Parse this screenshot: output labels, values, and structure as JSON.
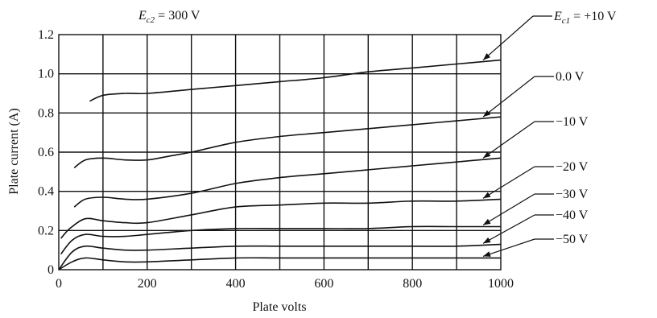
{
  "chart_data": {
    "type": "line",
    "xlabel": "Plate volts",
    "ylabel": "Plate current (A)",
    "xlim": [
      0,
      1000
    ],
    "ylim": [
      0,
      1.2
    ],
    "x_ticks": [
      "0",
      "200",
      "400",
      "600",
      "800",
      "1000"
    ],
    "y_ticks": [
      "0",
      "0.2",
      "0.4",
      "0.6",
      "0.8",
      "1.0",
      "1.2"
    ],
    "grid": true,
    "annotation": {
      "prefix": "E",
      "sub": "c2",
      "suffix": " = 300 V"
    },
    "series": [
      {
        "label_prefix": "E",
        "label_sub": "c1",
        "label": " = +10 V",
        "x": [
          70,
          100,
          150,
          200,
          300,
          400,
          500,
          600,
          700,
          800,
          900,
          1000
        ],
        "y": [
          0.86,
          0.89,
          0.9,
          0.9,
          0.92,
          0.94,
          0.96,
          0.98,
          1.01,
          1.03,
          1.05,
          1.07
        ]
      },
      {
        "label": "0.0 V",
        "x": [
          35,
          60,
          100,
          150,
          200,
          250,
          300,
          400,
          500,
          600,
          700,
          800,
          900,
          1000
        ],
        "y": [
          0.52,
          0.56,
          0.57,
          0.56,
          0.56,
          0.58,
          0.6,
          0.65,
          0.68,
          0.7,
          0.72,
          0.74,
          0.76,
          0.78
        ]
      },
      {
        "label": "−10 V",
        "x": [
          35,
          60,
          100,
          150,
          200,
          300,
          400,
          500,
          600,
          700,
          800,
          900,
          1000
        ],
        "y": [
          0.32,
          0.36,
          0.37,
          0.36,
          0.36,
          0.39,
          0.44,
          0.47,
          0.49,
          0.51,
          0.53,
          0.55,
          0.57
        ]
      },
      {
        "label": "−20 V",
        "x": [
          5,
          25,
          60,
          100,
          150,
          200,
          300,
          400,
          500,
          600,
          700,
          800,
          900,
          1000
        ],
        "y": [
          0.16,
          0.21,
          0.26,
          0.25,
          0.24,
          0.24,
          0.28,
          0.32,
          0.33,
          0.34,
          0.34,
          0.35,
          0.35,
          0.36
        ]
      },
      {
        "label": "−30 V",
        "x": [
          5,
          30,
          60,
          100,
          150,
          200,
          300,
          400,
          500,
          600,
          700,
          800,
          900,
          1000
        ],
        "y": [
          0.08,
          0.15,
          0.18,
          0.17,
          0.17,
          0.18,
          0.2,
          0.21,
          0.21,
          0.21,
          0.21,
          0.22,
          0.22,
          0.22
        ]
      },
      {
        "label": "−40 V",
        "x": [
          0,
          30,
          60,
          100,
          150,
          200,
          300,
          400,
          500,
          600,
          700,
          800,
          900,
          1000
        ],
        "y": [
          0.0,
          0.09,
          0.12,
          0.11,
          0.1,
          0.1,
          0.11,
          0.12,
          0.12,
          0.12,
          0.12,
          0.12,
          0.12,
          0.13
        ]
      },
      {
        "label": "−50 V",
        "x": [
          0,
          30,
          60,
          100,
          150,
          200,
          300,
          400,
          500,
          600,
          700,
          800,
          900,
          1000
        ],
        "y": [
          0.0,
          0.04,
          0.06,
          0.05,
          0.04,
          0.04,
          0.05,
          0.06,
          0.06,
          0.06,
          0.06,
          0.06,
          0.06,
          0.06
        ]
      }
    ]
  }
}
